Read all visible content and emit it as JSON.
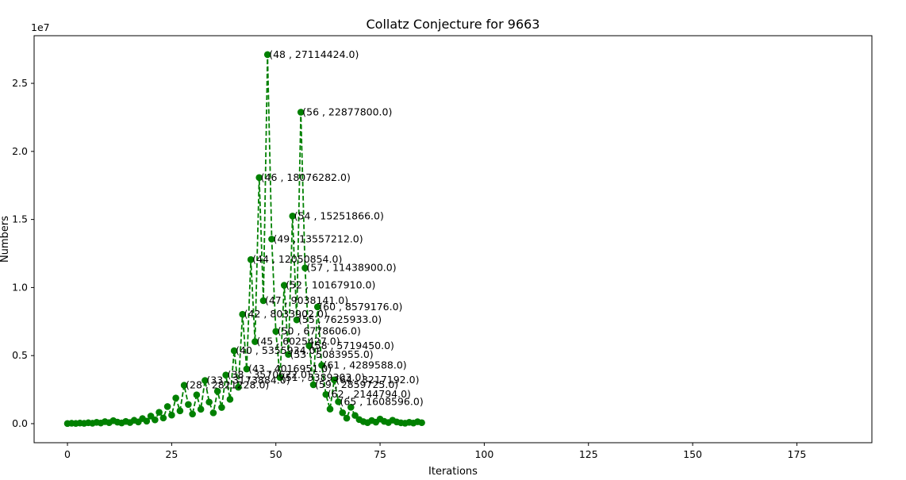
{
  "chart_data": {
    "type": "line",
    "title": "Collatz Conjecture for 9663",
    "xlabel": "Iterations",
    "ylabel": "Numbers",
    "y_scale_label": "1e7",
    "xlim": [
      -8,
      193
    ],
    "ylim": [
      -1400000,
      28500000
    ],
    "xticks": [
      0,
      25,
      50,
      75,
      100,
      125,
      150,
      175
    ],
    "xtick_labels": [
      "0",
      "25",
      "50",
      "75",
      "100",
      "125",
      "150",
      "175"
    ],
    "yticks": [
      0,
      5000000,
      10000000,
      15000000,
      20000000,
      25000000
    ],
    "ytick_labels": [
      "0.0",
      "0.5",
      "1.0",
      "1.5",
      "2.0",
      "2.5"
    ],
    "grid": false,
    "series": [
      {
        "style": "dashed line with circle markers",
        "color": "#008000",
        "x": [
          0,
          1,
          2,
          3,
          4,
          5,
          6,
          7,
          8,
          9,
          10,
          11,
          12,
          13,
          14,
          15,
          16,
          17,
          18,
          19,
          20,
          21,
          22,
          23,
          24,
          25,
          26,
          27,
          28,
          29,
          30,
          31,
          32,
          33,
          34,
          35,
          36,
          37,
          38,
          39,
          40,
          41,
          42,
          43,
          44,
          45,
          46,
          47,
          48,
          49,
          50,
          51,
          52,
          53,
          54,
          55,
          56,
          57,
          58,
          59,
          60,
          61,
          62,
          63,
          64,
          65,
          66,
          67,
          68,
          69,
          70,
          71,
          72,
          73,
          74,
          75,
          76,
          77,
          78,
          79,
          80,
          81,
          82,
          83,
          84,
          85
        ],
        "y": [
          9663,
          28990,
          14495,
          43486,
          21743,
          65230,
          32615,
          97846,
          48923,
          146770,
          73385,
          220156,
          110078,
          55039,
          165118,
          82559,
          247678,
          123839,
          371518,
          185759,
          557278,
          278639,
          835918,
          417959,
          1253878,
          626939,
          1880818,
          940409,
          2821228,
          1410614,
          705307,
          2115922,
          1057961,
          3173884,
          1586942,
          793471,
          2380414,
          1190207,
          3570622,
          1785311,
          5355934,
          2677967,
          8033902,
          4016951,
          12050854,
          6025427,
          18076282,
          9038141,
          27114424,
          13557212,
          6778606,
          3389303,
          10167910,
          5083955,
          15251866,
          7625933,
          22877800,
          11438900,
          5719450,
          2859725,
          8579176,
          4289588,
          2144794,
          1072397,
          3217192,
          1608596,
          804298,
          402149,
          1206448,
          603224,
          301612,
          150806,
          75403,
          226210,
          113105,
          339316,
          169658,
          84829,
          254488,
          127244,
          63622,
          31811,
          95434,
          47717,
          143152,
          71576
        ]
      }
    ],
    "annotations": [
      "(48 , 27114424.0)",
      "(56 , 22877800.0)",
      "(46 , 18076282.0)",
      "(54 , 15251866.0)",
      "(49 , 13557212.0)",
      "(44 , 12050854.0)",
      "(57 , 11438900.0)",
      "(52 , 10167910.0)",
      "(47 , 9038141.0)",
      "(60 , 8579176.0)",
      "(42 , 8033902.0)",
      "(55 , 7625933.0)",
      "(50 , 6778606.0)",
      "(45 , 6025427.0)",
      "(58 , 5719450.0)",
      "(40 , 5355934.0)",
      "(53 , 5083955.0)",
      "(61 , 4289588.0)",
      "(43 , 4016951.0)",
      "(38 , 3570622.0)",
      "(51 , 3389303.0)",
      "(64 , 3217192.0)",
      "(33 , 3173884.0)",
      "(59 , 2859725.0)",
      "(28 , 2821228.0)",
      "(62 , 2144794.0)",
      "(65 , 1608596.0)"
    ],
    "annotation_points": [
      [
        48,
        27114424
      ],
      [
        56,
        22877800
      ],
      [
        46,
        18076282
      ],
      [
        54,
        15251866
      ],
      [
        49,
        13557212
      ],
      [
        44,
        12050854
      ],
      [
        57,
        11438900
      ],
      [
        52,
        10167910
      ],
      [
        47,
        9038141
      ],
      [
        60,
        8579176
      ],
      [
        42,
        8033902
      ],
      [
        55,
        7625933
      ],
      [
        50,
        6778606
      ],
      [
        45,
        6025427
      ],
      [
        58,
        5719450
      ],
      [
        40,
        5355934
      ],
      [
        53,
        5083955
      ],
      [
        61,
        4289588
      ],
      [
        43,
        4016951
      ],
      [
        38,
        3570622
      ],
      [
        51,
        3389303
      ],
      [
        64,
        3217192
      ],
      [
        33,
        3173884
      ],
      [
        59,
        2859725
      ],
      [
        28,
        2821228
      ],
      [
        62,
        2144794
      ],
      [
        65,
        1608596
      ]
    ]
  }
}
